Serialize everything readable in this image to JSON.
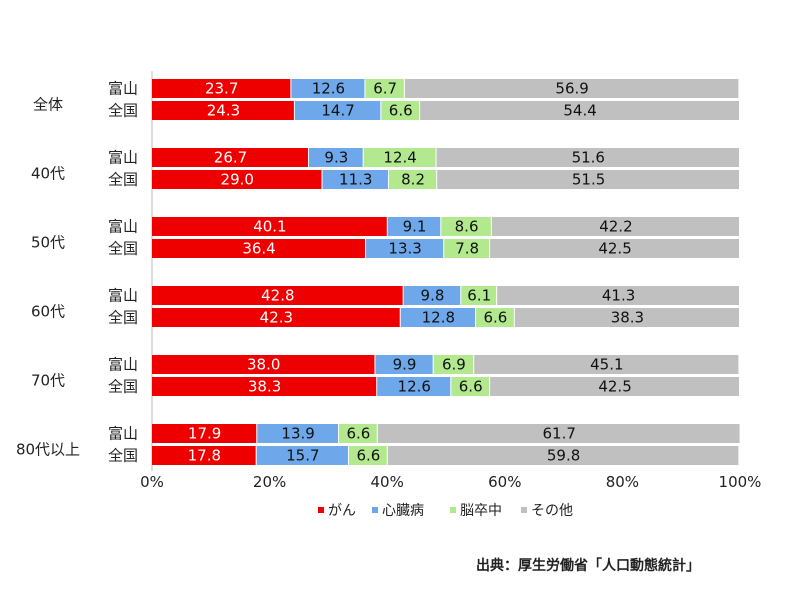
{
  "chart_data": {
    "type": "bar",
    "orientation": "horizontal",
    "stacked": true,
    "percent": true,
    "xlim": [
      0,
      100
    ],
    "x_ticks": [
      "0%",
      "20%",
      "40%",
      "60%",
      "80%",
      "100%"
    ],
    "legend_position": "bottom",
    "series": [
      {
        "name": "がん",
        "color": "#ee0000",
        "label_color": "#ffffff"
      },
      {
        "name": "心臓病",
        "color": "#6fa8ea",
        "label_color": "#111111"
      },
      {
        "name": "脳卒中",
        "color": "#b3e98e",
        "label_color": "#111111"
      },
      {
        "name": "その他",
        "color": "#c0c0c0",
        "label_color": "#111111"
      }
    ],
    "groups": [
      {
        "label": "全体",
        "rows": [
          {
            "label": "富山",
            "values": [
              23.7,
              12.6,
              6.7,
              56.9
            ]
          },
          {
            "label": "全国",
            "values": [
              24.3,
              14.7,
              6.6,
              54.4
            ]
          }
        ]
      },
      {
        "label": "40代",
        "rows": [
          {
            "label": "富山",
            "values": [
              26.7,
              9.3,
              12.4,
              51.6
            ]
          },
          {
            "label": "全国",
            "values": [
              29.0,
              11.3,
              8.2,
              51.5
            ]
          }
        ]
      },
      {
        "label": "50代",
        "rows": [
          {
            "label": "富山",
            "values": [
              40.1,
              9.1,
              8.6,
              42.2
            ]
          },
          {
            "label": "全国",
            "values": [
              36.4,
              13.3,
              7.8,
              42.5
            ]
          }
        ]
      },
      {
        "label": "60代",
        "rows": [
          {
            "label": "富山",
            "values": [
              42.8,
              9.8,
              6.1,
              41.3
            ]
          },
          {
            "label": "全国",
            "values": [
              42.3,
              12.8,
              6.6,
              38.3
            ]
          }
        ]
      },
      {
        "label": "70代",
        "rows": [
          {
            "label": "富山",
            "values": [
              38.0,
              9.9,
              6.9,
              45.1
            ]
          },
          {
            "label": "全国",
            "values": [
              38.3,
              12.6,
              6.6,
              42.5
            ]
          }
        ]
      },
      {
        "label": "80代以上",
        "rows": [
          {
            "label": "富山",
            "values": [
              17.9,
              13.9,
              6.6,
              61.7
            ]
          },
          {
            "label": "全国",
            "values": [
              17.8,
              15.7,
              6.6,
              59.8
            ]
          }
        ]
      }
    ]
  },
  "source": "出典：厚生労働省「人口動態統計」"
}
